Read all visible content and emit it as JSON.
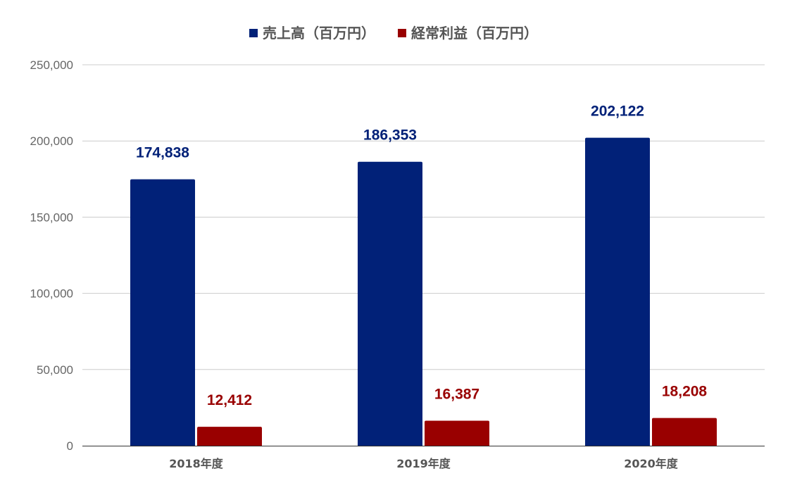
{
  "chart_data": {
    "type": "bar",
    "title": "",
    "xlabel": "",
    "ylabel": "",
    "categories": [
      "2018年度",
      "2019年度",
      "2020年度"
    ],
    "series": [
      {
        "name": "売上高（百万円）",
        "color": "#012178",
        "values": [
          174838,
          186353,
          202122
        ],
        "labels": [
          "174,838",
          "186,353",
          "202,122"
        ]
      },
      {
        "name": "経常利益（百万円）",
        "color": "#990000",
        "values": [
          12412,
          16387,
          18208
        ],
        "labels": [
          "12,412",
          "16,387",
          "18,208"
        ]
      }
    ],
    "ylim": [
      0,
      250000
    ],
    "yticks": [
      0,
      50000,
      100000,
      150000,
      200000,
      250000
    ],
    "ytick_labels": [
      "0",
      "50,000",
      "100,000",
      "150,000",
      "200,000",
      "250,000"
    ],
    "grid": true,
    "legend_position": "top"
  }
}
